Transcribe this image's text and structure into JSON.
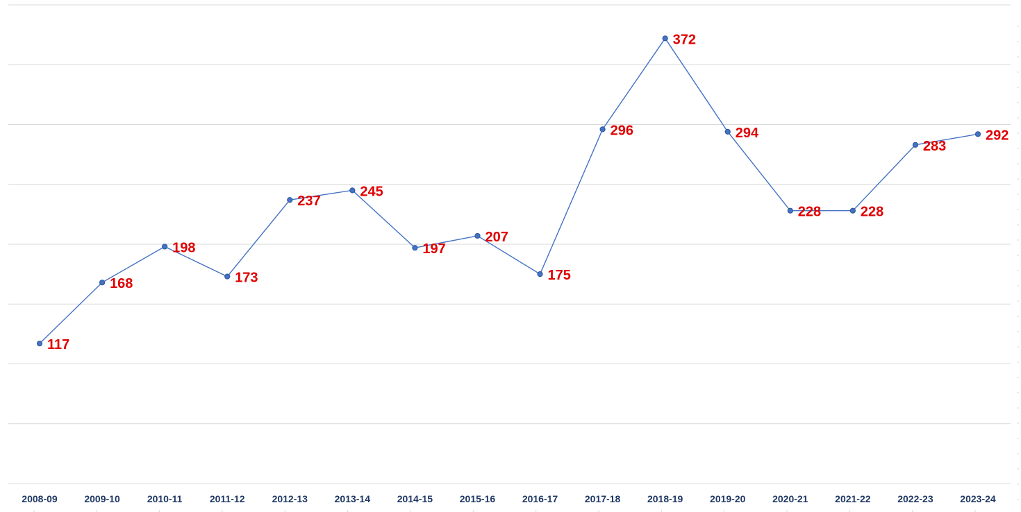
{
  "chart_data": {
    "type": "line",
    "title": "",
    "xlabel": "",
    "ylabel": "",
    "categories": [
      "2008-09",
      "2009-10",
      "2010-11",
      "2011-12",
      "2012-13",
      "2013-14",
      "2014-15",
      "2015-16",
      "2016-17",
      "2017-18",
      "2018-19",
      "2019-20",
      "2020-21",
      "2021-22",
      "2022-23",
      "2023-24"
    ],
    "series": [
      {
        "values": [
          117,
          168,
          198,
          173,
          237,
          245,
          197,
          207,
          175,
          296,
          372,
          294,
          228,
          228,
          283,
          292
        ]
      }
    ],
    "ylim": [
      0,
      400
    ],
    "grid": true,
    "legend": "none",
    "colors": {
      "line": "#4472C4",
      "labels": "#E00000",
      "ticks": "#1F3864",
      "grid": "#D9D9D9"
    }
  }
}
